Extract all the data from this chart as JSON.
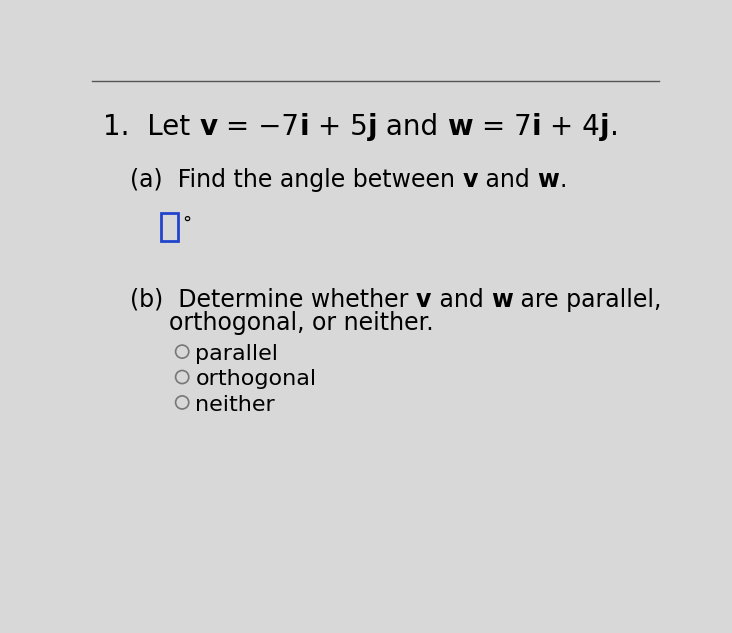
{
  "background_color": "#d8d8d8",
  "answer_box_color": "#2244cc",
  "top_line_color": "#555555",
  "font_size_title": 20,
  "font_size_body": 17,
  "font_size_radio": 16,
  "radio_options": [
    "parallel",
    "orthogonal",
    "neither"
  ],
  "degree_symbol": "°"
}
